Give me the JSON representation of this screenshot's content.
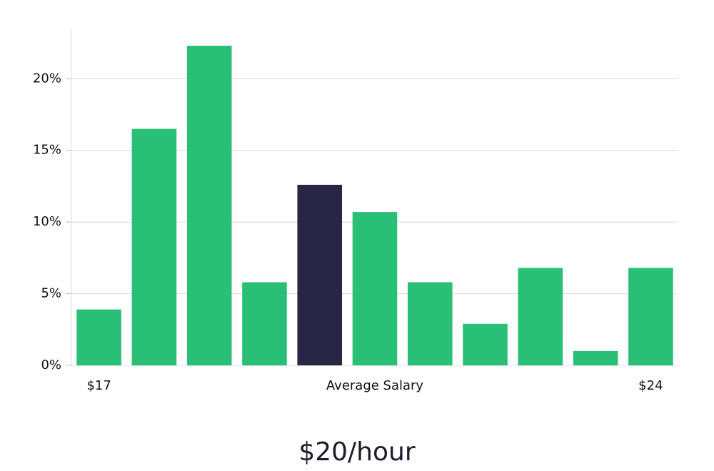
{
  "chart_data": {
    "type": "bar",
    "categories": [
      "$17",
      null,
      null,
      null,
      null,
      "Average Salary",
      null,
      null,
      null,
      null,
      "$24"
    ],
    "values": [
      3.9,
      16.5,
      22.3,
      5.8,
      12.6,
      10.7,
      5.8,
      2.9,
      6.8,
      1.0,
      6.8
    ],
    "colors": [
      "#29bf77",
      "#29bf77",
      "#29bf77",
      "#29bf77",
      "#282545",
      "#29bf77",
      "#29bf77",
      "#29bf77",
      "#29bf77",
      "#29bf77",
      "#29bf77"
    ],
    "ylim": [
      0,
      23.5
    ],
    "yticks": [
      {
        "value": 0,
        "label": "0%"
      },
      {
        "value": 5,
        "label": "5%"
      },
      {
        "value": 10,
        "label": "10%"
      },
      {
        "value": 15,
        "label": "15%"
      },
      {
        "value": 20,
        "label": "20%"
      }
    ],
    "grid": true,
    "footer": "$20/hour"
  }
}
